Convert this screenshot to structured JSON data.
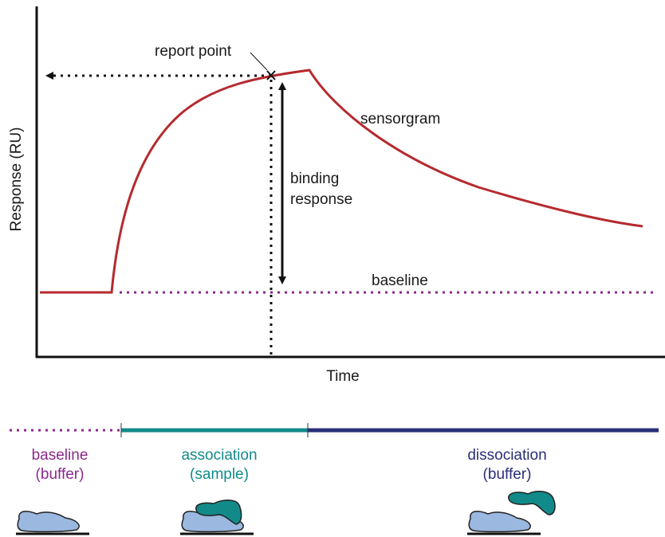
{
  "axes": {
    "y_label": "Response (RU)",
    "x_label": "Time"
  },
  "annotations": {
    "report_point": "report point",
    "sensorgram": "sensorgram",
    "binding_response": [
      "binding",
      "response"
    ],
    "baseline": "baseline"
  },
  "phases": [
    {
      "name": "baseline",
      "detail": "(buffer)"
    },
    {
      "name": "association",
      "detail": "(sample)"
    },
    {
      "name": "dissociation",
      "detail": "(buffer)"
    }
  ]
}
